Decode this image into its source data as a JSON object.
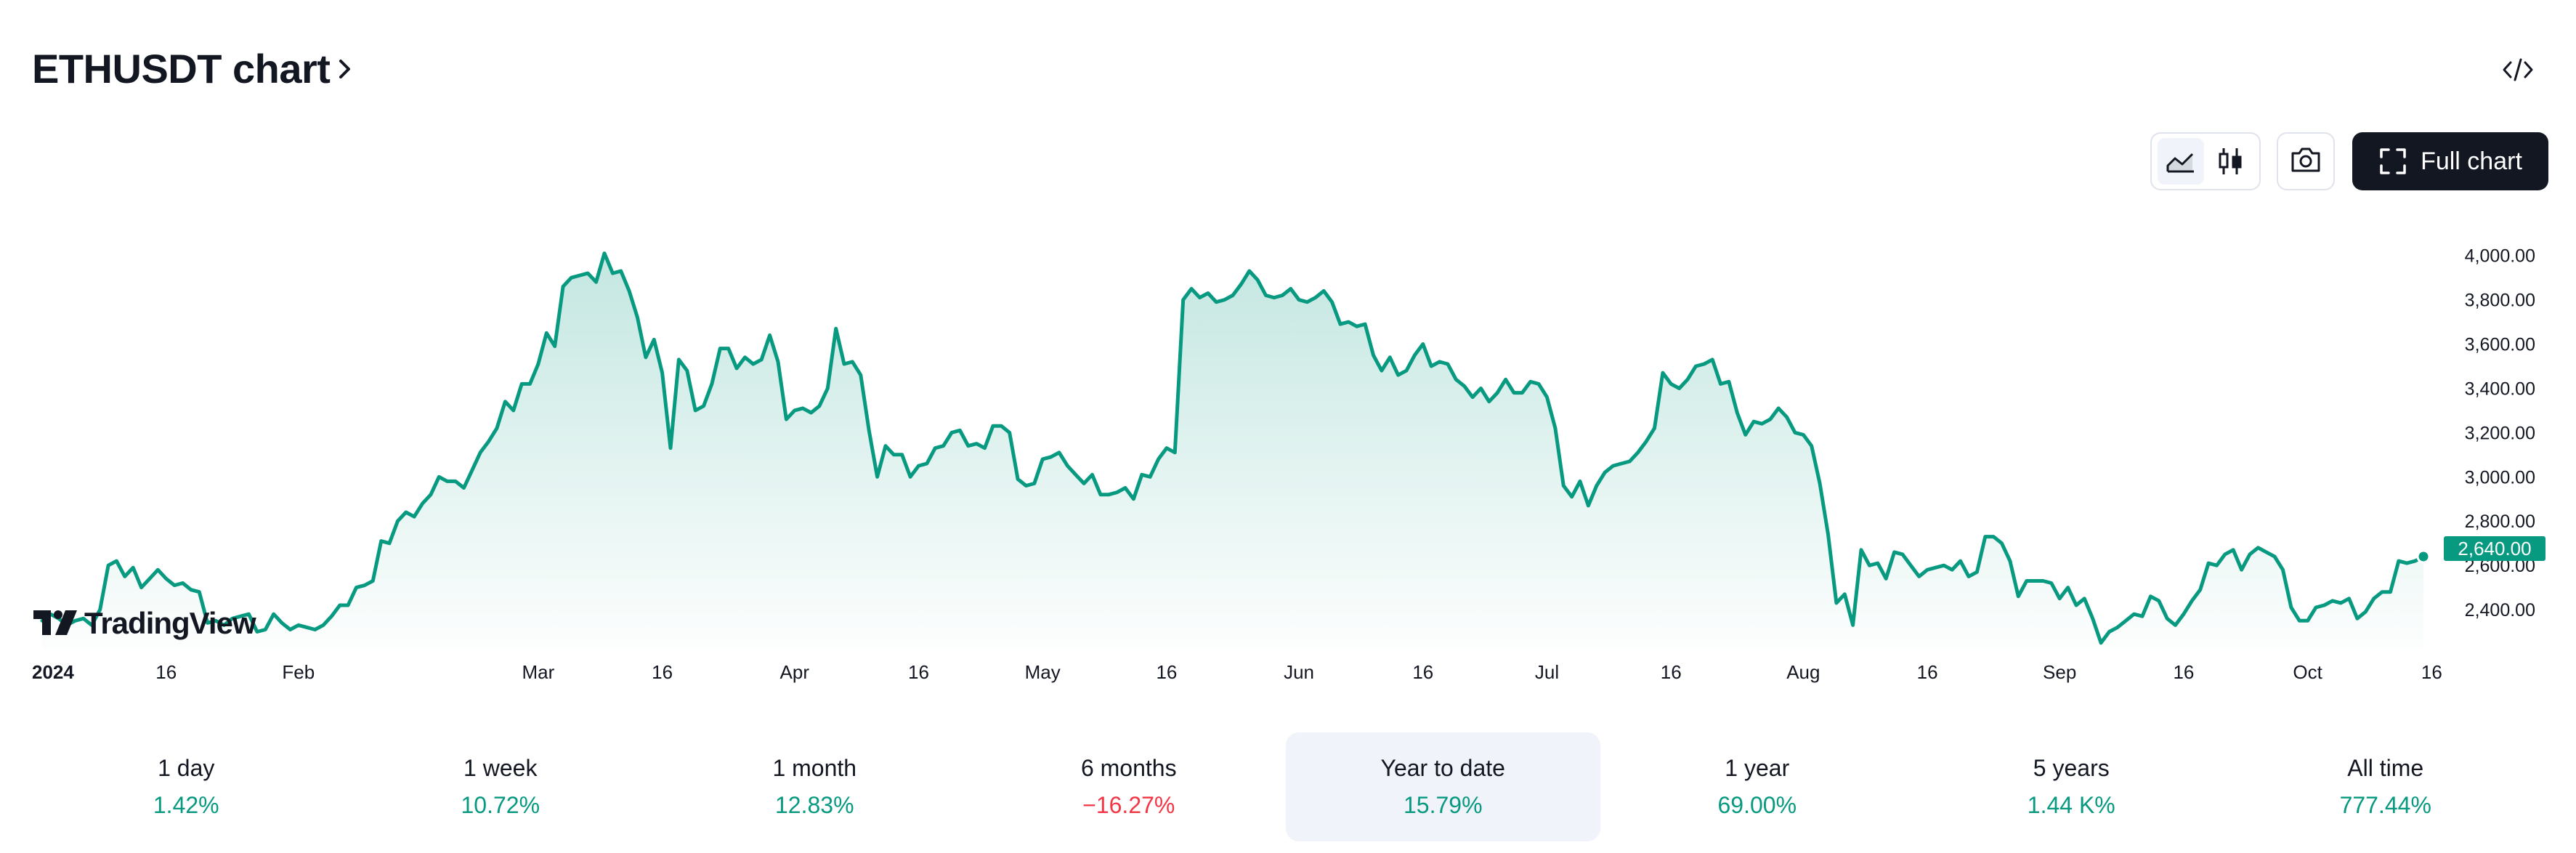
{
  "header": {
    "title": "ETHUSDT chart",
    "title_icon": "chevron-right-icon",
    "embed_icon": "code-embed-icon"
  },
  "toolbar": {
    "line_style_icon": "area-chart-icon",
    "candle_style_icon": "candlestick-icon",
    "snapshot_icon": "camera-icon",
    "full_chart_icon": "fullscreen-icon",
    "full_chart_label": "Full chart"
  },
  "branding": {
    "logo_text": "TradingView"
  },
  "colors": {
    "line": "#089981",
    "positive": "#089981",
    "negative": "#f23645",
    "active_period_bg": "#f0f3fa",
    "button_dark": "#131722"
  },
  "chart_data": {
    "type": "area",
    "symbol": "ETHUSDT",
    "last_value_label": "2,640.00",
    "ylim": [
      2200,
      4150
    ],
    "y_ticks": [
      2400,
      2600,
      2800,
      3000,
      3200,
      3400,
      3600,
      3800,
      4000
    ],
    "y_tick_labels": [
      "2,400.00",
      "2,600.00",
      "2,800.00",
      "3,000.00",
      "3,200.00",
      "3,400.00",
      "3,600.00",
      "3,800.00",
      "4,000.00"
    ],
    "x_ticks": [
      {
        "label": "2024",
        "day": 0,
        "bold": true
      },
      {
        "label": "16",
        "day": 15
      },
      {
        "label": "Feb",
        "day": 31
      },
      {
        "label": "Mar",
        "day": 60
      },
      {
        "label": "16",
        "day": 75
      },
      {
        "label": "Apr",
        "day": 91
      },
      {
        "label": "16",
        "day": 106
      },
      {
        "label": "May",
        "day": 121
      },
      {
        "label": "16",
        "day": 136
      },
      {
        "label": "Jun",
        "day": 152
      },
      {
        "label": "16",
        "day": 167
      },
      {
        "label": "Jul",
        "day": 182
      },
      {
        "label": "16",
        "day": 197
      },
      {
        "label": "Aug",
        "day": 213
      },
      {
        "label": "16",
        "day": 228
      },
      {
        "label": "Sep",
        "day": 244
      },
      {
        "label": "16",
        "day": 259
      },
      {
        "label": "Oct",
        "day": 274
      },
      {
        "label": "16",
        "day": 289
      }
    ],
    "series": [
      {
        "values": [
          2350,
          2380,
          2360,
          2330,
          2350,
          2360,
          2330,
          2400,
          2600,
          2620,
          2550,
          2590,
          2500,
          2540,
          2580,
          2540,
          2510,
          2520,
          2490,
          2480,
          2340,
          2350,
          2330,
          2360,
          2370,
          2380,
          2300,
          2310,
          2380,
          2340,
          2310,
          2330,
          2320,
          2310,
          2330,
          2370,
          2420,
          2420,
          2500,
          2510,
          2530,
          2710,
          2700,
          2800,
          2840,
          2820,
          2880,
          2920,
          3000,
          2980,
          2980,
          2950,
          3030,
          3110,
          3160,
          3220,
          3340,
          3300,
          3420,
          3420,
          3510,
          3650,
          3590,
          3860,
          3900,
          3910,
          3920,
          3880,
          4010,
          3920,
          3930,
          3840,
          3720,
          3540,
          3620,
          3470,
          3130,
          3530,
          3480,
          3300,
          3320,
          3420,
          3580,
          3580,
          3490,
          3540,
          3510,
          3530,
          3640,
          3520,
          3260,
          3300,
          3310,
          3290,
          3320,
          3400,
          3670,
          3510,
          3520,
          3460,
          3210,
          3000,
          3140,
          3100,
          3100,
          3000,
          3050,
          3060,
          3130,
          3140,
          3200,
          3210,
          3140,
          3150,
          3130,
          3230,
          3230,
          3200,
          2990,
          2960,
          2970,
          3080,
          3090,
          3110,
          3050,
          3010,
          2970,
          3010,
          2920,
          2920,
          2930,
          2950,
          2900,
          3010,
          3000,
          3080,
          3130,
          3110,
          3800,
          3850,
          3810,
          3830,
          3790,
          3800,
          3820,
          3870,
          3930,
          3890,
          3820,
          3810,
          3820,
          3850,
          3800,
          3790,
          3810,
          3840,
          3790,
          3690,
          3700,
          3680,
          3690,
          3550,
          3480,
          3540,
          3460,
          3480,
          3550,
          3600,
          3500,
          3520,
          3510,
          3440,
          3410,
          3360,
          3400,
          3340,
          3380,
          3440,
          3380,
          3380,
          3430,
          3420,
          3360,
          3220,
          2960,
          2910,
          2980,
          2870,
          2960,
          3020,
          3050,
          3060,
          3070,
          3110,
          3160,
          3220,
          3470,
          3420,
          3400,
          3440,
          3500,
          3510,
          3530,
          3420,
          3430,
          3290,
          3190,
          3250,
          3240,
          3260,
          3310,
          3270,
          3200,
          3190,
          3140,
          2970,
          2740,
          2430,
          2470,
          2330,
          2670,
          2600,
          2610,
          2540,
          2660,
          2650,
          2600,
          2550,
          2580,
          2590,
          2600,
          2580,
          2620,
          2550,
          2570,
          2730,
          2730,
          2700,
          2620,
          2460,
          2530,
          2530,
          2530,
          2520,
          2450,
          2500,
          2420,
          2450,
          2360,
          2250,
          2300,
          2320,
          2350,
          2380,
          2370,
          2460,
          2440,
          2360,
          2330,
          2380,
          2440,
          2490,
          2610,
          2600,
          2650,
          2670,
          2580,
          2650,
          2680,
          2660,
          2640,
          2580,
          2410,
          2350,
          2350,
          2410,
          2420,
          2440,
          2430,
          2450,
          2360,
          2390,
          2450,
          2480,
          2480,
          2620,
          2610,
          2620,
          2640
        ]
      }
    ]
  },
  "periods": [
    {
      "label": "1 day",
      "value": "1.42%",
      "sign": "pos"
    },
    {
      "label": "1 week",
      "value": "10.72%",
      "sign": "pos"
    },
    {
      "label": "1 month",
      "value": "12.83%",
      "sign": "pos"
    },
    {
      "label": "6 months",
      "value": "−16.27%",
      "sign": "neg"
    },
    {
      "label": "Year to date",
      "value": "15.79%",
      "sign": "pos",
      "active": true
    },
    {
      "label": "1 year",
      "value": "69.00%",
      "sign": "pos"
    },
    {
      "label": "5 years",
      "value": "1.44 K%",
      "sign": "pos"
    },
    {
      "label": "All time",
      "value": "777.44%",
      "sign": "pos"
    }
  ]
}
